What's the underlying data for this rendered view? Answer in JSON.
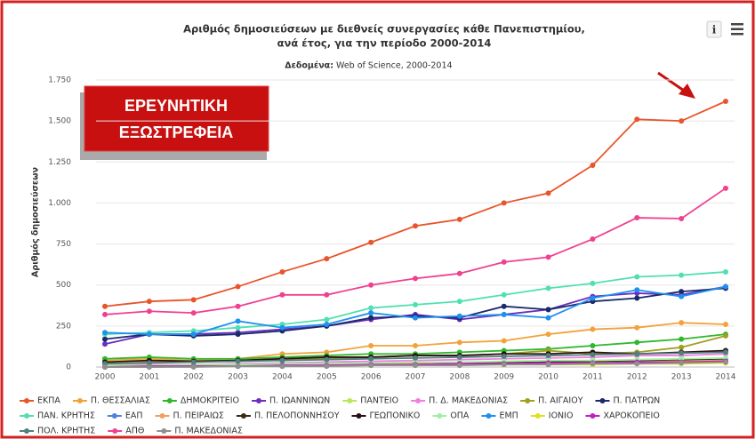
{
  "badge": [
    "ΕΡΕΥΝΗΤΙΚΗ",
    "ΕΞΩΣΤΡΕΦΕΙΑ"
  ],
  "chart_data": {
    "type": "line",
    "title": [
      "Αριθμός δημοσιεύσεων με διεθνείς συνεργασίες κάθε Πανεπιστημίου,",
      "ανά έτος, για την περίοδο 2000-2014"
    ],
    "subtitle": [
      "Δεδομένα:",
      "Web of Science, 2000-2014"
    ],
    "y_label": "Αριθμός δημοσιεύσεων",
    "categories": [
      "2000",
      "2001",
      "2002",
      "2003",
      "2004",
      "2005",
      "2006",
      "2007",
      "2008",
      "2009",
      "2010",
      "2011",
      "2012",
      "2013",
      "2014"
    ],
    "ylim": [
      0,
      1750
    ],
    "yticks": [
      0,
      250,
      500,
      750,
      {
        "value": 1000,
        "label": "1.000"
      },
      {
        "value": 1250,
        "label": "1.250"
      },
      {
        "value": 1500,
        "label": "1.500"
      },
      {
        "value": 1750,
        "label": "1.750"
      }
    ],
    "grid": true,
    "legend": "bottom",
    "series": [
      {
        "name": "ΕΚΠΑ",
        "color": "#e8552b",
        "values": [
          370,
          400,
          410,
          490,
          580,
          660,
          760,
          860,
          900,
          1000,
          1060,
          1230,
          1510,
          1500,
          1620
        ]
      },
      {
        "name": "Π. ΘΕΣΣΑΛΙΑΣ",
        "color": "#f2a23a",
        "values": [
          40,
          50,
          40,
          50,
          80,
          90,
          130,
          130,
          150,
          160,
          200,
          230,
          240,
          270,
          260
        ]
      },
      {
        "name": "ΔΗΜΟΚΡΙΤΕΙΟ",
        "color": "#2eb82e",
        "values": [
          50,
          60,
          50,
          50,
          60,
          70,
          80,
          80,
          90,
          100,
          110,
          130,
          150,
          170,
          200
        ]
      },
      {
        "name": "Π. ΙΩΑΝΝΙΝΩΝ",
        "color": "#6a2ec0",
        "values": [
          140,
          200,
          200,
          210,
          230,
          250,
          290,
          320,
          290,
          320,
          350,
          430,
          450,
          440,
          490
        ]
      },
      {
        "name": "ΠΑΝΤΕΙΟ",
        "color": "#b8e860",
        "values": [
          10,
          10,
          10,
          15,
          15,
          20,
          20,
          20,
          25,
          25,
          30,
          30,
          30,
          35,
          40
        ]
      },
      {
        "name": "Π. Δ. ΜΑΚΕΔΟΝΙΑΣ",
        "color": "#f080e0",
        "values": [
          10,
          15,
          15,
          20,
          25,
          30,
          35,
          40,
          45,
          50,
          55,
          60,
          70,
          70,
          80
        ]
      },
      {
        "name": "Π. ΑΙΓΑΙΟΥ",
        "color": "#a0a020",
        "values": [
          20,
          30,
          30,
          40,
          50,
          50,
          60,
          70,
          70,
          80,
          100,
          80,
          90,
          120,
          190
        ]
      },
      {
        "name": "Π. ΠΑΤΡΩΝ",
        "color": "#1a2a6a",
        "values": [
          170,
          200,
          190,
          200,
          220,
          250,
          300,
          310,
          300,
          370,
          350,
          400,
          420,
          460,
          480
        ]
      },
      {
        "name": "ΠΑΝ. ΚΡΗΤΗΣ",
        "color": "#50e0b0",
        "values": [
          200,
          210,
          220,
          240,
          260,
          290,
          360,
          380,
          400,
          440,
          480,
          510,
          550,
          560,
          580
        ]
      },
      {
        "name": "ΕΑΠ",
        "color": "#5080e0",
        "values": [
          5,
          5,
          5,
          10,
          10,
          10,
          15,
          15,
          20,
          20,
          25,
          25,
          30,
          30,
          35
        ]
      },
      {
        "name": "Π. ΠΕΙΡΑΙΩΣ",
        "color": "#f0a060",
        "values": [
          5,
          5,
          10,
          10,
          10,
          15,
          15,
          20,
          20,
          25,
          25,
          30,
          30,
          35,
          40
        ]
      },
      {
        "name": "Π. ΠΕΛΟΠΟΝΝΗΣΟΥ",
        "color": "#3a2a10",
        "values": [
          0,
          0,
          5,
          5,
          5,
          10,
          10,
          15,
          20,
          25,
          30,
          35,
          40,
          45,
          50
        ]
      },
      {
        "name": "ΓΕΩΠΟΝΙΚΟ",
        "color": "#2a1010",
        "values": [
          30,
          40,
          35,
          40,
          50,
          60,
          60,
          70,
          70,
          80,
          80,
          90,
          80,
          90,
          100
        ]
      },
      {
        "name": "ΟΠΑ",
        "color": "#a0f0a0",
        "values": [
          10,
          10,
          15,
          15,
          20,
          20,
          25,
          30,
          30,
          35,
          40,
          40,
          45,
          50,
          55
        ]
      },
      {
        "name": "ΕΜΠ",
        "color": "#2090f0",
        "values": [
          210,
          200,
          200,
          280,
          240,
          260,
          330,
          300,
          310,
          320,
          300,
          420,
          470,
          430,
          490
        ]
      },
      {
        "name": "ΙΟΝΙΟ",
        "color": "#e0e020",
        "values": [
          0,
          0,
          5,
          5,
          5,
          5,
          10,
          10,
          10,
          15,
          15,
          15,
          20,
          20,
          25
        ]
      },
      {
        "name": "ΧΑΡΟΚΟΠΕΙΟ",
        "color": "#c020c0",
        "values": [
          0,
          5,
          5,
          5,
          10,
          10,
          15,
          15,
          20,
          20,
          25,
          25,
          30,
          30,
          35
        ]
      },
      {
        "name": "ΠΟΛ. ΚΡΗΤΗΣ",
        "color": "#508080",
        "values": [
          20,
          25,
          30,
          35,
          40,
          45,
          50,
          55,
          60,
          65,
          70,
          75,
          80,
          85,
          90
        ]
      },
      {
        "name": "ΑΠΘ",
        "color": "#f04090",
        "values": [
          320,
          340,
          330,
          370,
          440,
          440,
          500,
          540,
          570,
          640,
          670,
          780,
          910,
          905,
          1090
        ]
      },
      {
        "name": "Π. ΜΑΚΕΔΟΝΙΑΣ",
        "color": "#909090",
        "values": [
          0,
          0,
          0,
          5,
          5,
          5,
          10,
          10,
          10,
          15,
          15,
          20,
          20,
          25,
          30
        ]
      }
    ]
  }
}
